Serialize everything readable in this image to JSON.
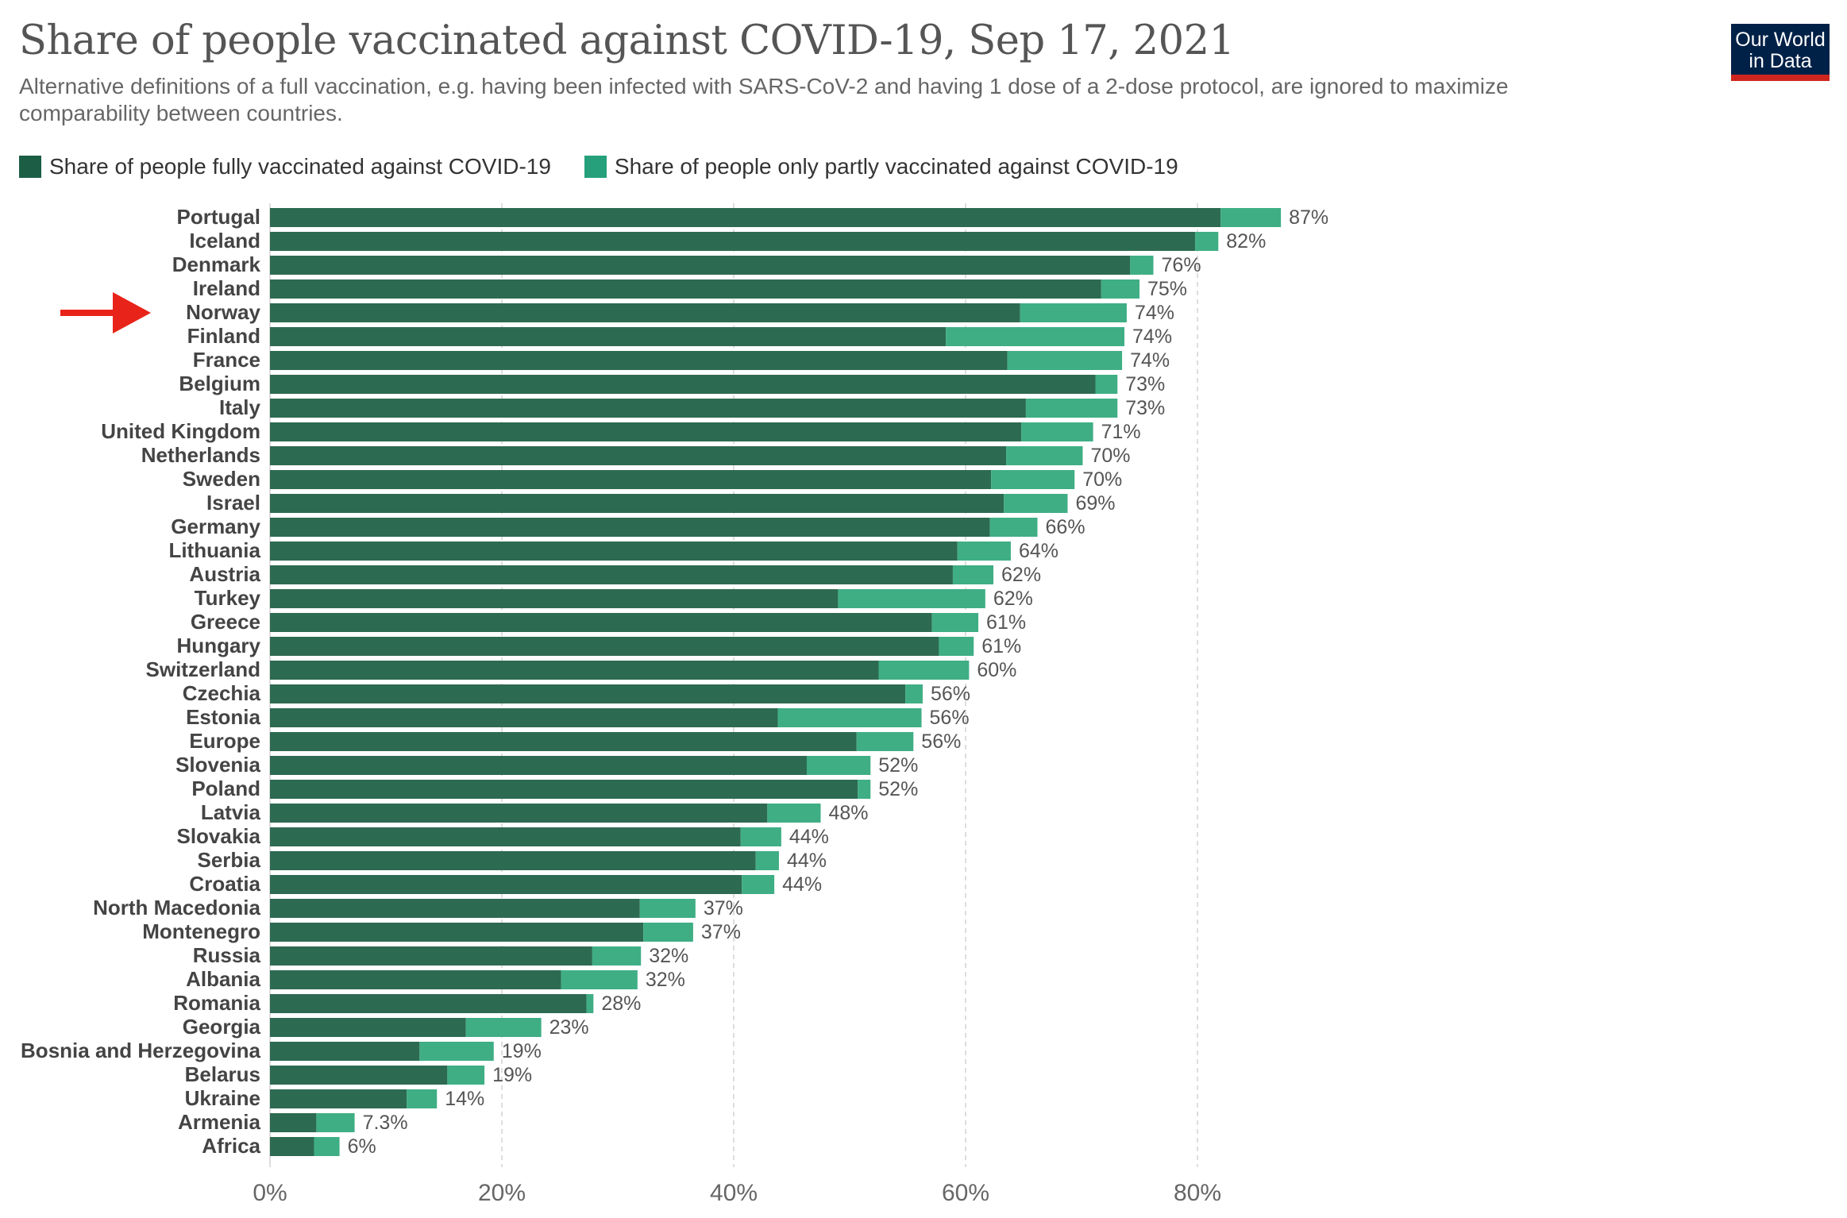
{
  "header": {
    "title": "Share of people vaccinated against COVID-19, Sep 17, 2021",
    "subtitle": "Alternative definitions of a full vaccination, e.g. having been infected with SARS-CoV-2 and having 1 dose of a 2-dose protocol, are ignored to maximize comparability between countries.",
    "logo_line1": "Our World",
    "logo_line2": "in Data"
  },
  "colors": {
    "fully": "#2d6a52",
    "partly": "#3fae85",
    "legend_fully": "#1b5e45",
    "legend_partly": "#25a07a",
    "arrow": "#e8241a",
    "grid": "#dddddd",
    "logo_bg": "#002147",
    "logo_bar": "#ce261e"
  },
  "chart_data": {
    "type": "bar",
    "orientation": "horizontal",
    "stacked": true,
    "title": "Share of people vaccinated against COVID-19, Sep 17, 2021",
    "legend": [
      "Share of people fully vaccinated against COVID-19",
      "Share of people only partly vaccinated against COVID-19"
    ],
    "legend_placement": "top-left",
    "categories": [
      "Portugal",
      "Iceland",
      "Denmark",
      "Ireland",
      "Norway",
      "Finland",
      "France",
      "Belgium",
      "Italy",
      "United Kingdom",
      "Netherlands",
      "Sweden",
      "Israel",
      "Germany",
      "Lithuania",
      "Austria",
      "Turkey",
      "Greece",
      "Hungary",
      "Switzerland",
      "Czechia",
      "Estonia",
      "Europe",
      "Slovenia",
      "Poland",
      "Latvia",
      "Slovakia",
      "Serbia",
      "Croatia",
      "North Macedonia",
      "Montenegro",
      "Russia",
      "Albania",
      "Romania",
      "Georgia",
      "Bosnia and Herzegovina",
      "Belarus",
      "Ukraine",
      "Armenia",
      "Africa"
    ],
    "series": [
      {
        "name": "Share of people fully vaccinated against COVID-19",
        "values": [
          82.0,
          79.8,
          74.2,
          71.7,
          64.7,
          58.3,
          63.6,
          71.2,
          65.2,
          64.8,
          63.5,
          62.2,
          63.3,
          62.1,
          59.3,
          58.9,
          49.0,
          57.1,
          57.7,
          52.5,
          54.8,
          43.8,
          50.6,
          46.3,
          50.7,
          42.9,
          40.6,
          41.9,
          40.7,
          31.9,
          32.2,
          27.8,
          25.1,
          27.3,
          16.9,
          12.9,
          15.3,
          11.8,
          4.0,
          3.8
        ],
        "color": "#2d6a52"
      },
      {
        "name": "Share of people only partly vaccinated against COVID-19",
        "values": [
          5.2,
          2.0,
          2.0,
          3.3,
          9.2,
          15.4,
          9.9,
          1.9,
          7.9,
          6.2,
          6.6,
          7.2,
          5.5,
          4.1,
          4.6,
          3.5,
          12.7,
          4.0,
          3.0,
          7.8,
          1.5,
          12.4,
          4.9,
          5.5,
          1.1,
          4.6,
          3.5,
          2.0,
          2.8,
          4.8,
          4.3,
          4.2,
          6.6,
          0.6,
          6.5,
          6.4,
          3.2,
          2.6,
          3.3,
          2.2
        ],
        "color": "#3fae85"
      }
    ],
    "total_labels": [
      "87%",
      "82%",
      "76%",
      "75%",
      "74%",
      "74%",
      "74%",
      "73%",
      "73%",
      "71%",
      "70%",
      "70%",
      "69%",
      "66%",
      "64%",
      "62%",
      "62%",
      "61%",
      "61%",
      "60%",
      "56%",
      "56%",
      "56%",
      "52%",
      "52%",
      "48%",
      "44%",
      "44%",
      "44%",
      "37%",
      "37%",
      "32%",
      "32%",
      "28%",
      "23%",
      "19%",
      "19%",
      "14%",
      "7.3%",
      "6%"
    ],
    "x_ticks": [
      0,
      20,
      40,
      60,
      80
    ],
    "x_tick_labels": [
      "0%",
      "20%",
      "40%",
      "60%",
      "80%"
    ],
    "xlim": [
      0,
      87
    ],
    "grid": "vertical dashed",
    "annotation": {
      "type": "arrow",
      "target": "Norway"
    }
  }
}
